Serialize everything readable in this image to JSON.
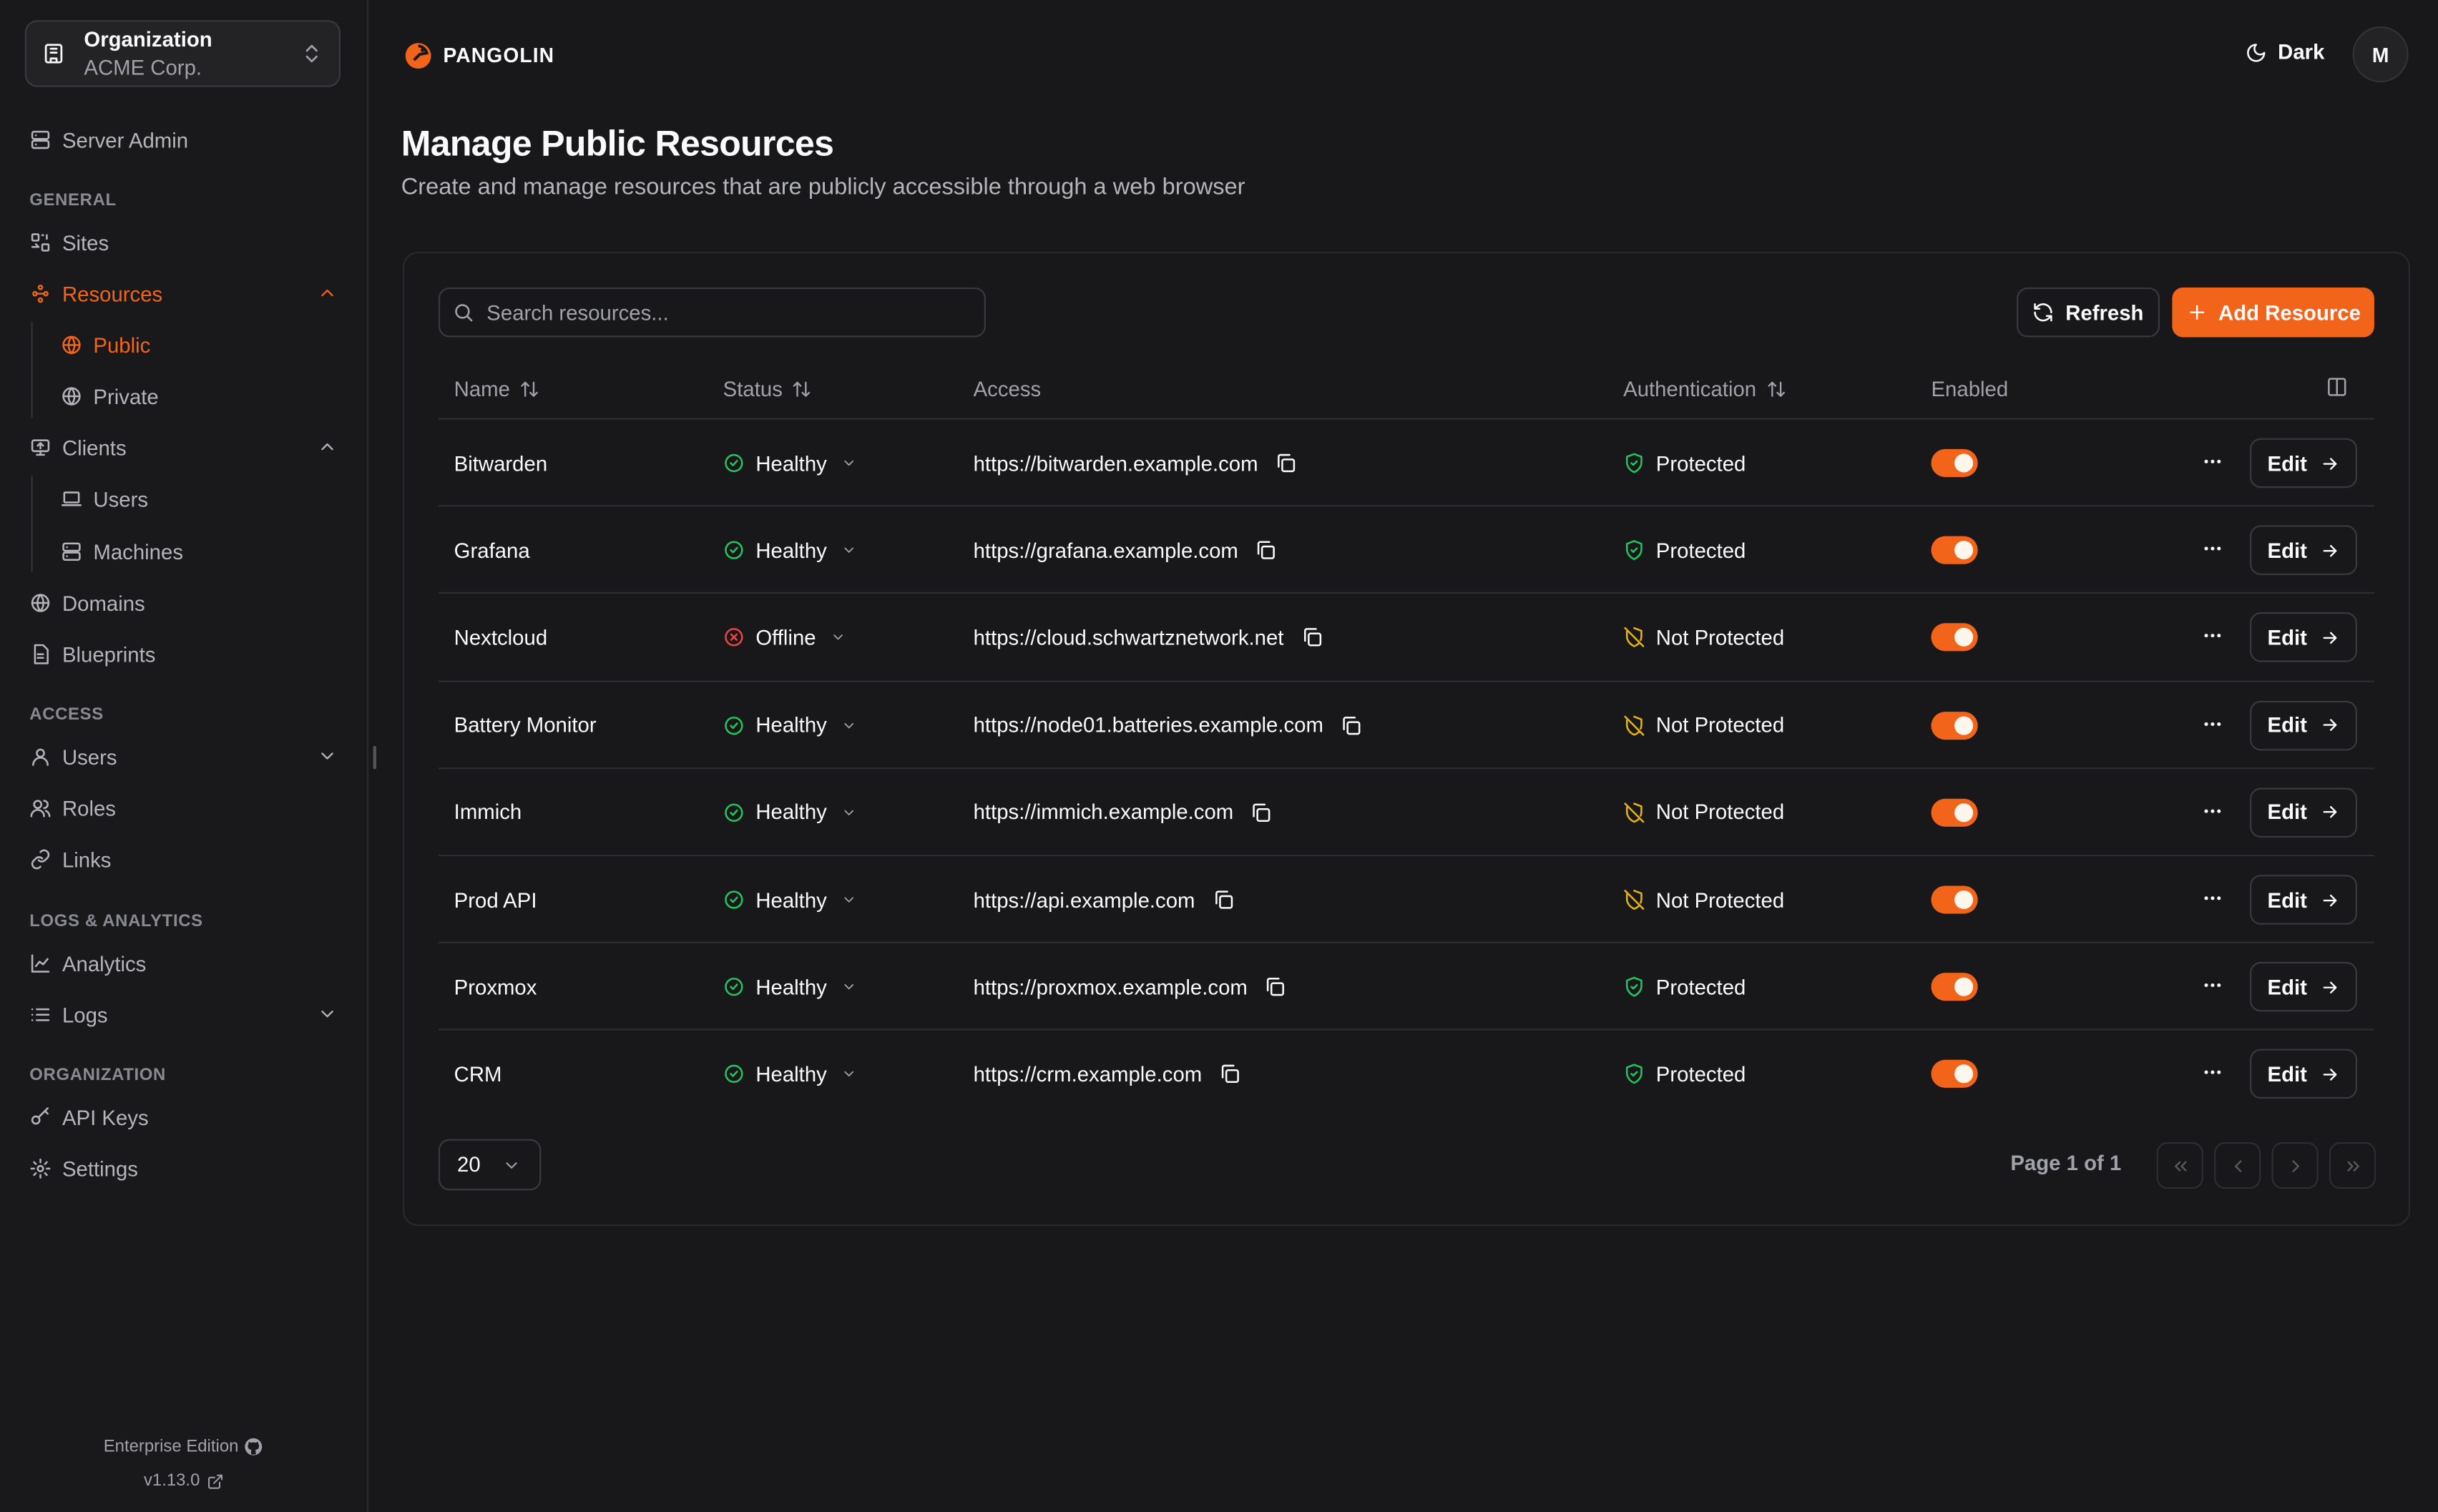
{
  "colors": {
    "accent": "#f26419",
    "healthy": "#22c55e",
    "offline": "#ef4444",
    "protected": "#22c55e",
    "not_protected": "#eab308"
  },
  "org": {
    "label": "Organization",
    "name": "ACME Corp.",
    "icon": "building-icon"
  },
  "sidebar": {
    "server_admin": "Server Admin",
    "sections": {
      "general": "GENERAL",
      "access": "ACCESS",
      "logs": "LOGS & ANALYTICS",
      "organization": "ORGANIZATION"
    },
    "items": {
      "sites": "Sites",
      "resources": "Resources",
      "public": "Public",
      "private": "Private",
      "clients": "Clients",
      "client_users": "Users",
      "machines": "Machines",
      "domains": "Domains",
      "blueprints": "Blueprints",
      "users": "Users",
      "roles": "Roles",
      "links": "Links",
      "analytics": "Analytics",
      "logs": "Logs",
      "api_keys": "API Keys",
      "settings": "Settings"
    },
    "active": "public",
    "footer": {
      "edition": "Enterprise Edition",
      "version": "v1.13.0"
    }
  },
  "header": {
    "brand": "PANGOLIN",
    "theme": "Dark",
    "avatar": "M"
  },
  "page": {
    "title": "Manage Public Resources",
    "subtitle": "Create and manage resources that are publicly accessible through a web browser"
  },
  "toolbar": {
    "search_placeholder": "Search resources...",
    "refresh": "Refresh",
    "add": "Add Resource"
  },
  "table": {
    "columns": {
      "name": "Name",
      "status": "Status",
      "access": "Access",
      "auth": "Authentication",
      "enabled": "Enabled"
    },
    "edit_label": "Edit",
    "rows": [
      {
        "name": "Bitwarden",
        "status": "Healthy",
        "access": "https://bitwarden.example.com",
        "auth": "Protected",
        "enabled": true
      },
      {
        "name": "Grafana",
        "status": "Healthy",
        "access": "https://grafana.example.com",
        "auth": "Protected",
        "enabled": true
      },
      {
        "name": "Nextcloud",
        "status": "Offline",
        "access": "https://cloud.schwartznetwork.net",
        "auth": "Not Protected",
        "enabled": true
      },
      {
        "name": "Battery Monitor",
        "status": "Healthy",
        "access": "https://node01.batteries.example.com",
        "auth": "Not Protected",
        "enabled": true
      },
      {
        "name": "Immich",
        "status": "Healthy",
        "access": "https://immich.example.com",
        "auth": "Not Protected",
        "enabled": true
      },
      {
        "name": "Prod API",
        "status": "Healthy",
        "access": "https://api.example.com",
        "auth": "Not Protected",
        "enabled": true
      },
      {
        "name": "Proxmox",
        "status": "Healthy",
        "access": "https://proxmox.example.com",
        "auth": "Protected",
        "enabled": true
      },
      {
        "name": "CRM",
        "status": "Healthy",
        "access": "https://crm.example.com",
        "auth": "Protected",
        "enabled": true
      }
    ]
  },
  "pagination": {
    "page_size": "20",
    "page_info": "Page 1 of 1"
  }
}
